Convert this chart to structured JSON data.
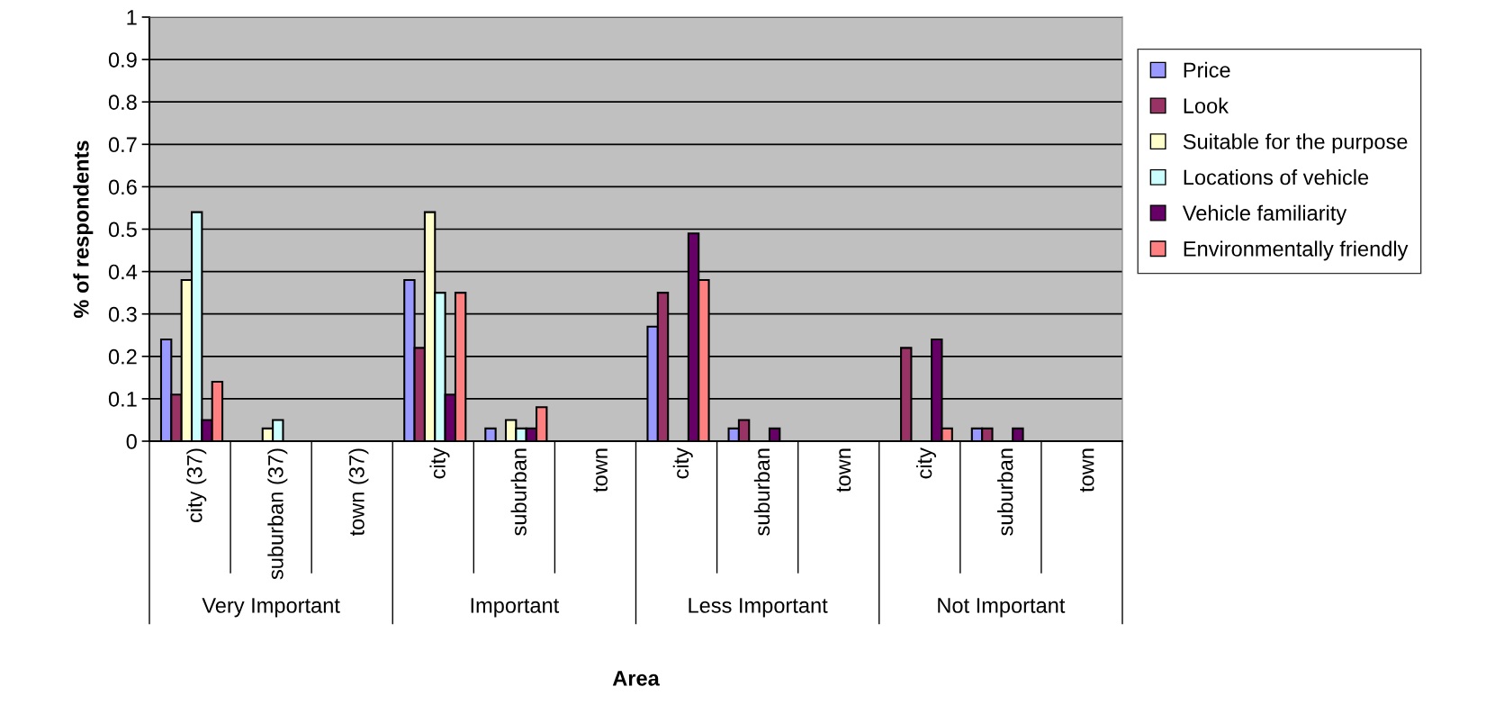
{
  "chart_data": {
    "type": "bar",
    "ylabel": "% of respondents",
    "xlabel": "Area",
    "categories": [
      "city (37)",
      "suburban (37)",
      "town (37)",
      "city",
      "suburban",
      "town",
      "city",
      "suburban",
      "town",
      "city",
      "suburban",
      "town"
    ],
    "annotations": [
      "Very Important",
      "Important",
      "Less Important",
      "Not Important"
    ],
    "series": [
      {
        "name": "Price",
        "color": "#9999ff",
        "values": [
          0.24,
          0,
          0,
          0.38,
          0.03,
          0,
          0.27,
          0.03,
          0,
          0,
          0.03,
          0
        ]
      },
      {
        "name": "Look",
        "color": "#993366",
        "values": [
          0.11,
          0,
          0,
          0.22,
          0,
          0,
          0.35,
          0.05,
          0,
          0.22,
          0.03,
          0
        ]
      },
      {
        "name": "Suitable for the purpose",
        "color": "#ffffcc",
        "values": [
          0.38,
          0.03,
          0,
          0.54,
          0.05,
          0,
          0,
          0,
          0,
          0,
          0,
          0
        ]
      },
      {
        "name": "Locations of vehicle",
        "color": "#ccffff",
        "values": [
          0.54,
          0.05,
          0,
          0.35,
          0.03,
          0,
          0,
          0,
          0,
          0,
          0,
          0
        ]
      },
      {
        "name": "Vehicle familiarity",
        "color": "#660066",
        "values": [
          0.05,
          0,
          0,
          0.11,
          0.03,
          0,
          0.49,
          0.03,
          0,
          0.24,
          0.03,
          0
        ]
      },
      {
        "name": "Environmentally friendly",
        "color": "#ff8080",
        "values": [
          0.14,
          0,
          0,
          0.35,
          0.08,
          0,
          0.38,
          0,
          0,
          0.03,
          0,
          0
        ]
      }
    ],
    "ylim": [
      0,
      1
    ],
    "yticks": [
      0,
      0.1,
      0.2,
      0.3,
      0.4,
      0.5,
      0.6,
      0.7,
      0.8,
      0.9,
      1
    ],
    "grid": "y",
    "legend": "right"
  }
}
